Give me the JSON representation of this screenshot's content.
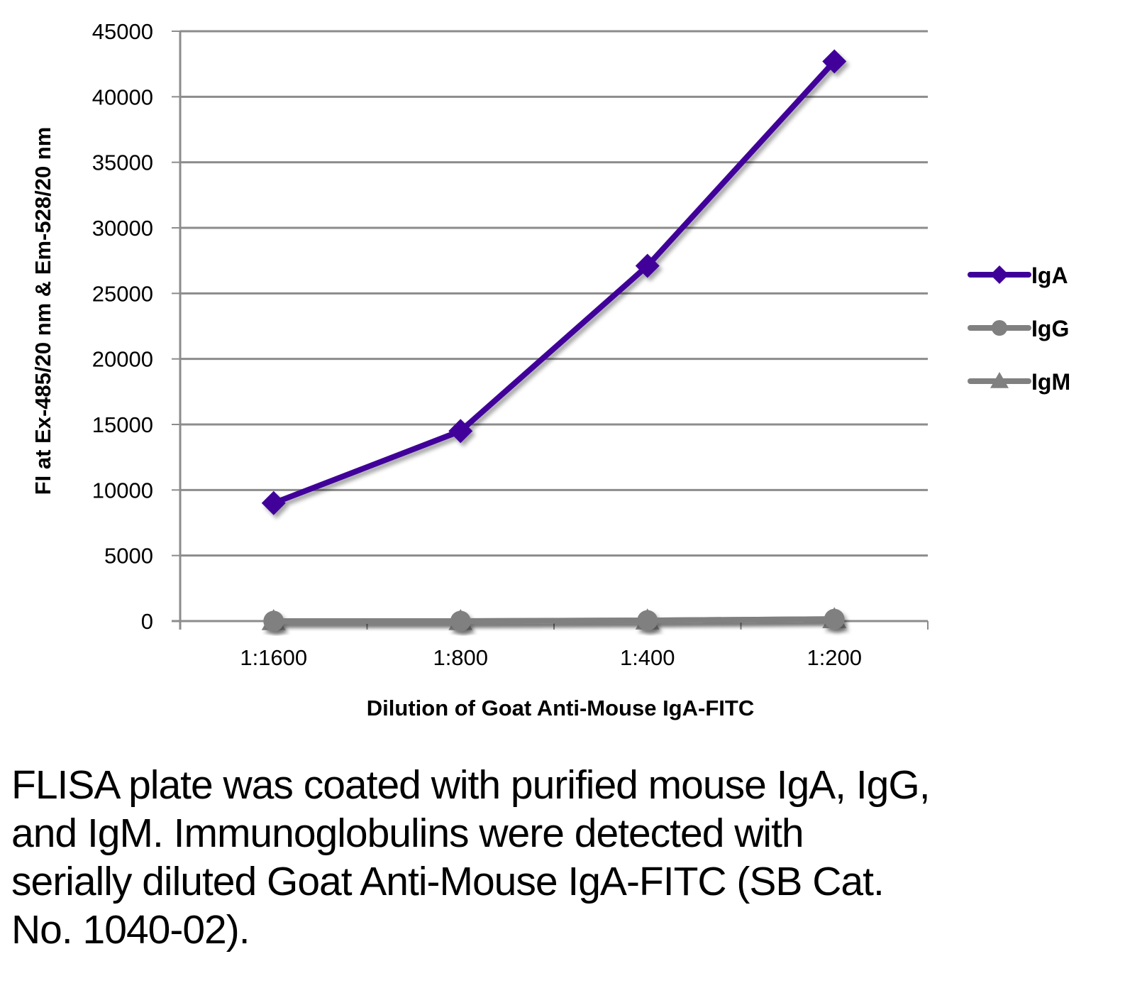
{
  "chart_data": {
    "type": "line",
    "title": "",
    "xlabel": "Dilution of Goat Anti-Mouse IgA-FITC",
    "ylabel": "FI at Ex-485/20 nm & Em-528/20 nm",
    "categories": [
      "1:1600",
      "1:800",
      "1:400",
      "1:200"
    ],
    "ylim": [
      0,
      45000
    ],
    "yticks": [
      0,
      5000,
      10000,
      15000,
      20000,
      25000,
      30000,
      35000,
      40000,
      45000
    ],
    "ytick_labels": [
      "0",
      "5000",
      "10000",
      "15000",
      "20000",
      "25000",
      "30000",
      "35000",
      "40000",
      "45000"
    ],
    "grid": "horizontal",
    "legend_position": "right",
    "series": [
      {
        "name": "IgA",
        "marker": "diamond",
        "color": "#3f0099",
        "values": [
          9000,
          14500,
          27100,
          42700
        ]
      },
      {
        "name": "IgG",
        "marker": "circle",
        "color": "#808080",
        "values": [
          0,
          0,
          50,
          150
        ]
      },
      {
        "name": "IgM",
        "marker": "triangle",
        "color": "#808080",
        "values": [
          0,
          0,
          50,
          150
        ]
      }
    ]
  },
  "colors": {
    "grid": "#8c8c8c",
    "axis": "#8c8c8c",
    "iga": "#3f0099",
    "igg_igm": "#808080"
  },
  "caption": "FLISA plate was coated with purified mouse IgA, IgG, and IgM.  Immunoglobulins were detected with serially diluted Goat Anti-Mouse IgA-FITC (SB Cat. No. 1040-02)."
}
